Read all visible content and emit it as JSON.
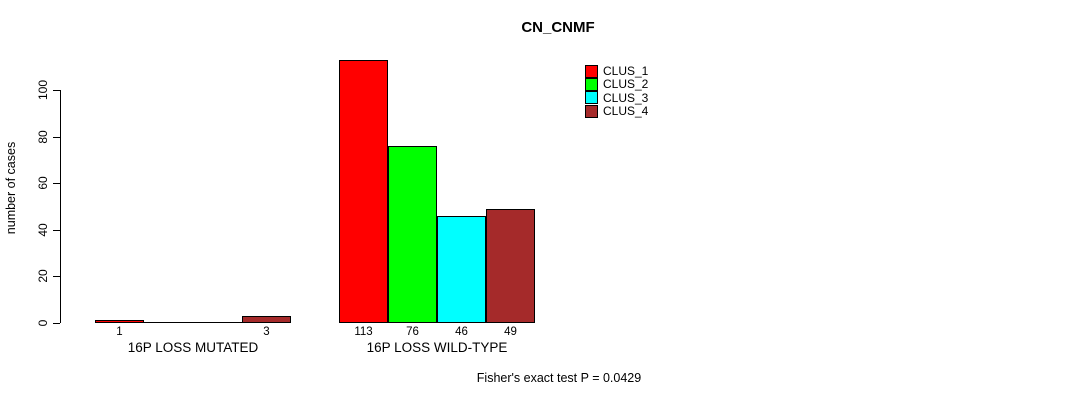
{
  "chart_data": {
    "type": "bar",
    "title": "CN_CNMF",
    "ylabel": "number of cases",
    "footer": "Fisher's exact test P = 0.0429",
    "yticks": [
      0,
      20,
      40,
      60,
      80,
      100
    ],
    "ylim": [
      0,
      113
    ],
    "grid": false,
    "legend_position": "top-right",
    "categories": [
      "16P LOSS MUTATED",
      "16P LOSS WILD-TYPE"
    ],
    "series": [
      {
        "name": "CLUS_1",
        "color": "#FF0000",
        "values": [
          1,
          113
        ]
      },
      {
        "name": "CLUS_2",
        "color": "#00FF00",
        "values": [
          0,
          76
        ]
      },
      {
        "name": "CLUS_3",
        "color": "#00FFFF",
        "values": [
          0,
          46
        ]
      },
      {
        "name": "CLUS_4",
        "color": "#A52A2A",
        "values": [
          3,
          49
        ]
      }
    ],
    "bar_value_labels": {
      "16P LOSS MUTATED": [
        1,
        3
      ],
      "16P LOSS WILD-TYPE": [
        113,
        76,
        46,
        49
      ]
    }
  }
}
